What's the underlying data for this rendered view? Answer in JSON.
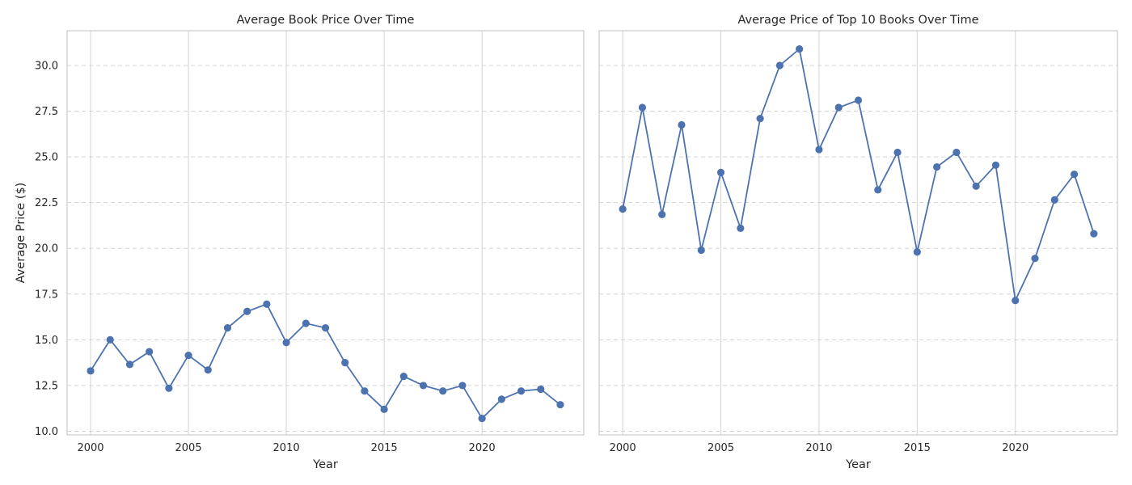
{
  "chart_data": [
    {
      "type": "line",
      "title": "Average Book Price Over Time",
      "xlabel": "Year",
      "ylabel": "Average Price ($)",
      "xlim": [
        1998.8,
        2025.2
      ],
      "ylim": [
        9.8,
        31.9
      ],
      "xticks": [
        2000,
        2005,
        2010,
        2015,
        2020
      ],
      "yticks": [
        10.0,
        12.5,
        15.0,
        17.5,
        20.0,
        22.5,
        25.0,
        27.5,
        30.0
      ],
      "grid": true,
      "color": "#4c72b0",
      "x": [
        2000,
        2001,
        2002,
        2003,
        2004,
        2005,
        2006,
        2007,
        2008,
        2009,
        2010,
        2011,
        2012,
        2013,
        2014,
        2015,
        2016,
        2017,
        2018,
        2019,
        2020,
        2021,
        2022,
        2023,
        2024
      ],
      "y": [
        13.3,
        15.0,
        13.65,
        14.35,
        12.35,
        14.15,
        13.35,
        15.65,
        16.55,
        16.95,
        14.85,
        15.9,
        15.65,
        13.75,
        12.2,
        11.2,
        13.0,
        12.5,
        12.2,
        12.5,
        10.7,
        11.75,
        12.2,
        12.3,
        11.45
      ]
    },
    {
      "type": "line",
      "title": "Average Price of Top 10 Books Over Time",
      "xlabel": "Year",
      "ylabel": "",
      "xlim": [
        1998.8,
        2025.2
      ],
      "ylim": [
        9.8,
        31.9
      ],
      "xticks": [
        2000,
        2005,
        2010,
        2015,
        2020
      ],
      "yticks": [
        10.0,
        12.5,
        15.0,
        17.5,
        20.0,
        22.5,
        25.0,
        27.5,
        30.0
      ],
      "grid": true,
      "color": "#4c72b0",
      "x": [
        2000,
        2001,
        2002,
        2003,
        2004,
        2005,
        2006,
        2007,
        2008,
        2009,
        2010,
        2011,
        2012,
        2013,
        2014,
        2015,
        2016,
        2017,
        2018,
        2019,
        2020,
        2021,
        2022,
        2023,
        2024
      ],
      "y": [
        22.15,
        27.7,
        21.85,
        26.75,
        19.9,
        24.15,
        21.1,
        27.1,
        30.0,
        30.9,
        25.4,
        27.7,
        28.1,
        23.2,
        25.25,
        19.8,
        24.45,
        25.25,
        23.4,
        24.55,
        17.15,
        19.45,
        22.65,
        24.05,
        20.8
      ]
    }
  ]
}
